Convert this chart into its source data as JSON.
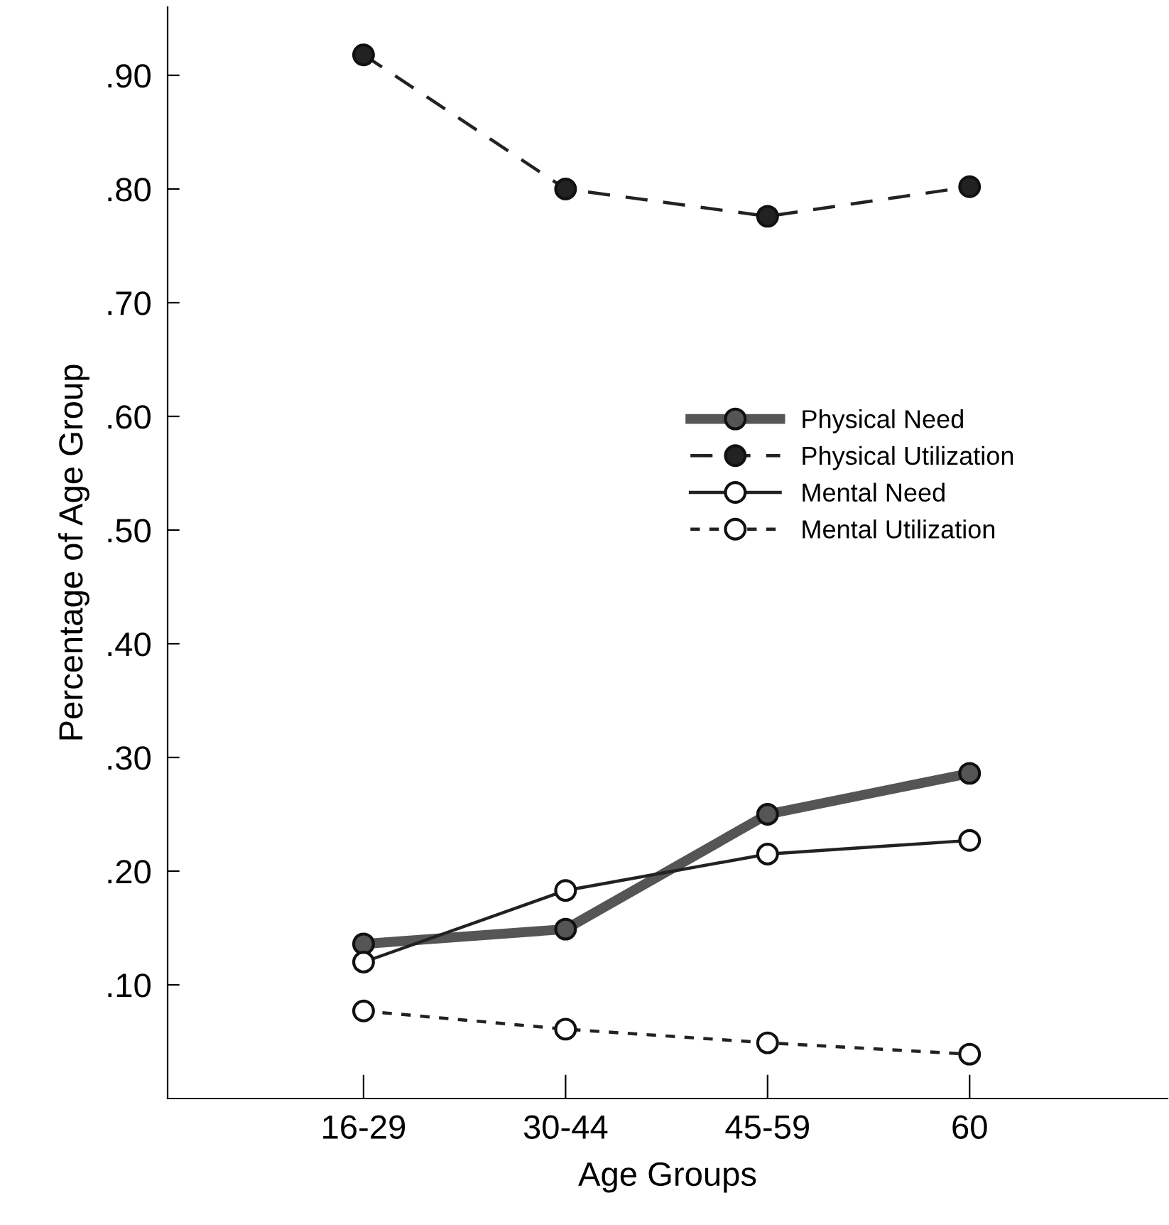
{
  "chart_data": {
    "type": "line",
    "xlabel": "Age Groups",
    "ylabel": "Percentage of Age Group",
    "categories": [
      "16-29",
      "30-44",
      "45-59",
      "60"
    ],
    "series": [
      {
        "name": "Physical Need",
        "color": "#555555",
        "marker": "circle",
        "line_style": "solid",
        "values": [
          0.136,
          0.149,
          0.25,
          0.286
        ]
      },
      {
        "name": "Physical Utilization",
        "color": "#222222",
        "marker": "circle",
        "line_style": "dashed",
        "values": [
          0.918,
          0.8,
          0.776,
          0.802
        ]
      },
      {
        "name": "Mental Need",
        "color": "#222222",
        "marker": "circle",
        "line_style": "solid",
        "values": [
          0.12,
          0.183,
          0.215,
          0.227
        ]
      },
      {
        "name": "Mental Utilization",
        "color": "#222222",
        "marker": "circle",
        "line_style": "dotted",
        "values": [
          0.077,
          0.061,
          0.049,
          0.039
        ]
      }
    ],
    "ylim": [
      0,
      0.96
    ],
    "yticks": [
      {
        "value": 0.1,
        "label": ".10"
      },
      {
        "value": 0.2,
        "label": ".20"
      },
      {
        "value": 0.3,
        "label": ".30"
      },
      {
        "value": 0.4,
        "label": ".40"
      },
      {
        "value": 0.5,
        "label": ".50"
      },
      {
        "value": 0.6,
        "label": ".60"
      },
      {
        "value": 0.7,
        "label": ".70"
      },
      {
        "value": 0.8,
        "label": ".80"
      },
      {
        "value": 0.9,
        "label": ".90"
      }
    ],
    "grid": false,
    "legend": "right"
  }
}
